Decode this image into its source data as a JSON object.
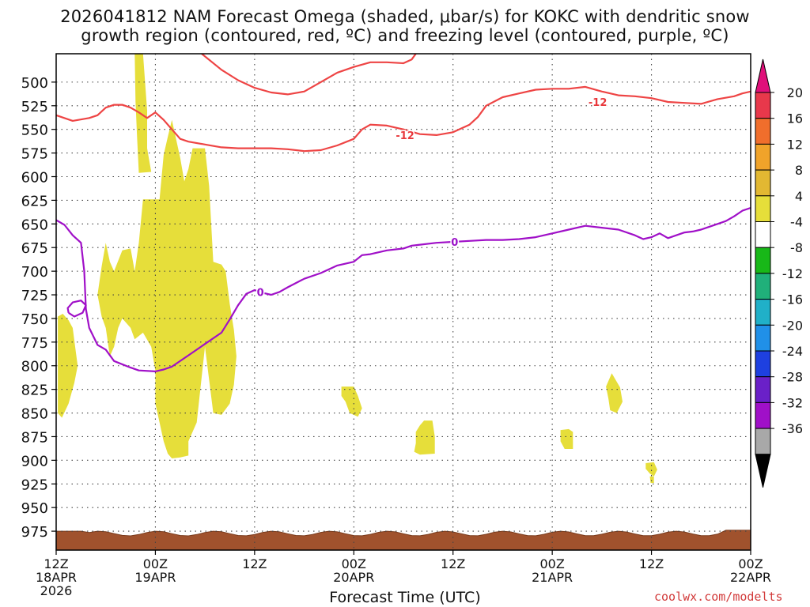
{
  "chart_data": {
    "type": "time-height contour",
    "title_line1": "2026041812 NAM Forecast Omega (shaded, μbar/s) for KOKC with dendritic snow",
    "title_line2": "growth region (contoured, red, ºC) and freezing level (contoured, purple, ºC)",
    "xlabel": "Forecast Time (UTC)",
    "credit": "coolwx.com/modelts",
    "x_range_hours": [
      0,
      84
    ],
    "y_range_hpa": [
      470,
      995
    ],
    "y_ticks": [
      "500",
      "525",
      "550",
      "575",
      "600",
      "625",
      "650",
      "675",
      "700",
      "725",
      "750",
      "775",
      "800",
      "825",
      "850",
      "875",
      "900",
      "925",
      "950",
      "975"
    ],
    "x_ticks": [
      {
        "hour": 0,
        "line1": "12Z",
        "line2": "18APR",
        "line3": "2026"
      },
      {
        "hour": 12,
        "line1": "00Z",
        "line2": "19APR",
        "line3": ""
      },
      {
        "hour": 24,
        "line1": "12Z",
        "line2": "",
        "line3": ""
      },
      {
        "hour": 36,
        "line1": "00Z",
        "line2": "20APR",
        "line3": ""
      },
      {
        "hour": 48,
        "line1": "12Z",
        "line2": "",
        "line3": ""
      },
      {
        "hour": 60,
        "line1": "00Z",
        "line2": "21APR",
        "line3": ""
      },
      {
        "hour": 72,
        "line1": "12Z",
        "line2": "",
        "line3": ""
      },
      {
        "hour": 84,
        "line1": "00Z",
        "line2": "22APR",
        "line3": ""
      }
    ],
    "colorbar": {
      "labels": [
        "20",
        "16",
        "12",
        "8",
        "4",
        "-4",
        "-8",
        "-12",
        "-16",
        "-20",
        "-24",
        "-28",
        "-32",
        "-36"
      ],
      "colors": [
        "#e8384b",
        "#f06e2c",
        "#f0a32a",
        "#e2b832",
        "#e6de3a",
        "#ffffff",
        "#18b818",
        "#20b07a",
        "#20b0c8",
        "#2090e8",
        "#1e40e0",
        "#6a20c8",
        "#a010c8",
        "#a8a8a8"
      ],
      "top_arrow_color": "#e0107a",
      "bottom_arrow_color": "#000000"
    },
    "contour_labels": [
      {
        "text": "-12",
        "color": "#e8383c"
      },
      {
        "text": "-12",
        "color": "#e8383c"
      },
      {
        "text": "0",
        "color": "#9a10c8"
      },
      {
        "text": "0",
        "color": "#9a10c8"
      }
    ],
    "series": [
      {
        "name": "dgz_upper_-12C",
        "color": "#ee4444",
        "points": [
          [
            17.6,
            470
          ],
          [
            20,
            487
          ],
          [
            22,
            498
          ],
          [
            24,
            506
          ],
          [
            26,
            511
          ],
          [
            28,
            513
          ],
          [
            30,
            510
          ],
          [
            32,
            500
          ],
          [
            34,
            490
          ],
          [
            36,
            484
          ],
          [
            38,
            479
          ],
          [
            40,
            479
          ],
          [
            42,
            480
          ],
          [
            43,
            476
          ],
          [
            43.5,
            470
          ]
        ]
      },
      {
        "name": "dgz_lower_-12C",
        "color": "#ee4444",
        "points": [
          [
            0,
            535
          ],
          [
            2,
            541
          ],
          [
            4,
            538
          ],
          [
            5,
            535
          ],
          [
            6,
            527
          ],
          [
            7,
            524
          ],
          [
            8,
            524
          ],
          [
            9,
            527
          ],
          [
            10,
            532
          ],
          [
            11,
            538
          ],
          [
            12,
            532
          ],
          [
            13,
            540
          ],
          [
            14,
            550
          ],
          [
            15,
            560
          ],
          [
            16,
            563
          ],
          [
            18,
            566
          ],
          [
            20,
            569
          ],
          [
            22,
            570
          ],
          [
            24,
            570
          ],
          [
            26,
            570
          ],
          [
            28,
            571
          ],
          [
            30,
            573
          ],
          [
            32,
            572
          ],
          [
            34,
            567
          ],
          [
            36,
            560
          ],
          [
            37,
            550
          ],
          [
            38,
            545
          ],
          [
            40,
            546
          ],
          [
            42,
            550
          ],
          [
            44,
            555
          ],
          [
            46,
            556
          ],
          [
            48,
            553
          ],
          [
            50,
            545
          ],
          [
            51,
            537
          ],
          [
            52,
            525
          ],
          [
            54,
            516
          ],
          [
            56,
            512
          ],
          [
            58,
            508
          ],
          [
            60,
            507
          ],
          [
            62,
            507
          ],
          [
            64,
            505
          ],
          [
            66,
            510
          ],
          [
            68,
            514
          ],
          [
            70,
            515
          ],
          [
            72,
            517
          ],
          [
            74,
            521
          ],
          [
            76,
            522
          ],
          [
            78,
            523
          ],
          [
            80,
            518
          ],
          [
            82,
            515
          ],
          [
            83,
            512
          ],
          [
            84,
            510
          ]
        ]
      },
      {
        "name": "freezing_level_0C",
        "color": "#a010c8",
        "points": [
          [
            0,
            646
          ],
          [
            1,
            651
          ],
          [
            2,
            662
          ],
          [
            3,
            670
          ],
          [
            3.4,
            700
          ],
          [
            3.6,
            740
          ],
          [
            4,
            760
          ],
          [
            5,
            778
          ],
          [
            6,
            783
          ],
          [
            7,
            795
          ],
          [
            9,
            802
          ],
          [
            10,
            805
          ],
          [
            12,
            806
          ],
          [
            13,
            804
          ],
          [
            14,
            801
          ],
          [
            16,
            789
          ],
          [
            18,
            777
          ],
          [
            20,
            765
          ],
          [
            21,
            751
          ],
          [
            22,
            736
          ],
          [
            23,
            724
          ],
          [
            24,
            720
          ],
          [
            25,
            723
          ],
          [
            26,
            725
          ],
          [
            27,
            722
          ],
          [
            28,
            717
          ],
          [
            30,
            708
          ],
          [
            32,
            702
          ],
          [
            34,
            694
          ],
          [
            36,
            690
          ],
          [
            37,
            683
          ],
          [
            38,
            682
          ],
          [
            40,
            678
          ],
          [
            42,
            676
          ],
          [
            43,
            673
          ],
          [
            44,
            672
          ],
          [
            46,
            670
          ],
          [
            48,
            669
          ],
          [
            50,
            668
          ],
          [
            52,
            667
          ],
          [
            54,
            667
          ],
          [
            56,
            666
          ],
          [
            58,
            664
          ],
          [
            60,
            660
          ],
          [
            62,
            656
          ],
          [
            64,
            652
          ],
          [
            66,
            654
          ],
          [
            68,
            656
          ],
          [
            70,
            662
          ],
          [
            71,
            666
          ],
          [
            72,
            664
          ],
          [
            73,
            660
          ],
          [
            74,
            665
          ],
          [
            75,
            662
          ],
          [
            76,
            659
          ],
          [
            77,
            658
          ],
          [
            78,
            656
          ],
          [
            80,
            650
          ],
          [
            81,
            647
          ],
          [
            82,
            642
          ],
          [
            83,
            636
          ],
          [
            84,
            633
          ]
        ]
      },
      {
        "name": "freezing_level_loop",
        "color": "#a010c8",
        "points": [
          [
            1.5,
            744
          ],
          [
            2.2,
            748
          ],
          [
            3.2,
            744
          ],
          [
            3.6,
            736
          ],
          [
            3.0,
            731
          ],
          [
            2.0,
            733
          ],
          [
            1.4,
            739
          ],
          [
            1.5,
            744
          ]
        ]
      },
      {
        "name": "omega_4_area_1",
        "color": "#e6de3a",
        "points": [
          [
            0.2,
            748
          ],
          [
            0.8,
            745
          ],
          [
            1.5,
            752
          ],
          [
            2,
            760
          ],
          [
            2.3,
            780
          ],
          [
            2.6,
            800
          ],
          [
            2.2,
            818
          ],
          [
            1.5,
            840
          ],
          [
            0.7,
            855
          ],
          [
            0.2,
            850
          ]
        ]
      },
      {
        "name": "omega_4_area_2",
        "color": "#e6de3a",
        "points": [
          [
            9.5,
            470
          ],
          [
            10.5,
            470
          ],
          [
            11,
            530
          ],
          [
            11,
            570
          ],
          [
            11.5,
            595
          ],
          [
            10,
            596
          ],
          [
            9.8,
            560
          ],
          [
            9.6,
            520
          ]
        ]
      },
      {
        "name": "omega_4_area_3",
        "color": "#e6de3a",
        "points": [
          [
            5,
            725
          ],
          [
            5.5,
            695
          ],
          [
            6,
            670
          ],
          [
            6.5,
            690
          ],
          [
            7,
            700
          ],
          [
            8,
            678
          ],
          [
            9,
            676
          ],
          [
            9.5,
            700
          ],
          [
            10,
            670
          ],
          [
            10.5,
            624
          ],
          [
            12.5,
            624
          ],
          [
            13,
            577
          ],
          [
            13.5,
            558
          ],
          [
            14,
            540
          ],
          [
            15,
            580
          ],
          [
            15.5,
            605
          ],
          [
            16,
            592
          ],
          [
            16.5,
            570
          ],
          [
            18,
            570
          ],
          [
            18.5,
            610
          ],
          [
            19,
            690
          ],
          [
            20,
            693
          ],
          [
            20.5,
            700
          ],
          [
            21,
            735
          ],
          [
            21.5,
            762
          ],
          [
            21.8,
            790
          ],
          [
            21.5,
            820
          ],
          [
            21,
            840
          ],
          [
            20,
            852
          ],
          [
            19,
            850
          ],
          [
            18.5,
            815
          ],
          [
            18,
            780
          ],
          [
            17.5,
            820
          ],
          [
            17,
            860
          ],
          [
            16,
            880
          ],
          [
            16,
            895
          ],
          [
            15,
            897
          ],
          [
            14,
            898
          ],
          [
            13.5,
            893
          ],
          [
            13,
            880
          ],
          [
            12.5,
            860
          ],
          [
            12,
            840
          ],
          [
            12,
            805
          ],
          [
            11.5,
            780
          ],
          [
            10.5,
            765
          ],
          [
            9.5,
            772
          ],
          [
            9,
            760
          ],
          [
            8,
            750
          ],
          [
            7.5,
            760
          ],
          [
            7,
            780
          ],
          [
            6.5,
            790
          ],
          [
            6,
            760
          ],
          [
            5.5,
            748
          ]
        ]
      },
      {
        "name": "omega_4_area_4",
        "color": "#e6de3a",
        "points": [
          [
            34.5,
            822
          ],
          [
            36,
            822
          ],
          [
            36.5,
            832
          ],
          [
            37,
            845
          ],
          [
            36.5,
            854
          ],
          [
            35.5,
            850
          ],
          [
            35,
            838
          ],
          [
            34.5,
            832
          ]
        ]
      },
      {
        "name": "omega_4_area_5",
        "color": "#e6de3a",
        "points": [
          [
            43.5,
            870
          ],
          [
            44,
            863
          ],
          [
            44.5,
            858
          ],
          [
            45.5,
            858
          ],
          [
            45.8,
            875
          ],
          [
            45.8,
            893
          ],
          [
            44,
            894
          ],
          [
            43.3,
            891
          ],
          [
            43.5,
            882
          ]
        ]
      },
      {
        "name": "omega_4_area_6",
        "color": "#e6de3a",
        "points": [
          [
            61,
            868
          ],
          [
            62,
            867
          ],
          [
            62.5,
            870
          ],
          [
            62.5,
            888
          ],
          [
            61.5,
            888
          ],
          [
            61,
            880
          ]
        ]
      },
      {
        "name": "omega_4_area_7",
        "color": "#e6de3a",
        "points": [
          [
            66.5,
            822
          ],
          [
            67.2,
            808
          ],
          [
            68.2,
            823
          ],
          [
            68.5,
            838
          ],
          [
            67.8,
            850
          ],
          [
            67,
            847
          ],
          [
            66.8,
            835
          ]
        ]
      },
      {
        "name": "omega_4_area_8",
        "color": "#e6de3a",
        "points": [
          [
            71.3,
            903
          ],
          [
            72.3,
            902
          ],
          [
            72.7,
            910
          ],
          [
            72.3,
            917
          ],
          [
            71.8,
            914
          ],
          [
            71.3,
            909
          ]
        ]
      },
      {
        "name": "omega_4_area_9",
        "color": "#e6de3a",
        "points": [
          [
            71.8,
            917
          ],
          [
            72.3,
            917
          ],
          [
            72.3,
            924
          ],
          [
            71.9,
            924
          ]
        ]
      }
    ],
    "ground": {
      "color": "#a0522d",
      "top_hpa_min": 975,
      "top_hpa_max": 980
    }
  }
}
